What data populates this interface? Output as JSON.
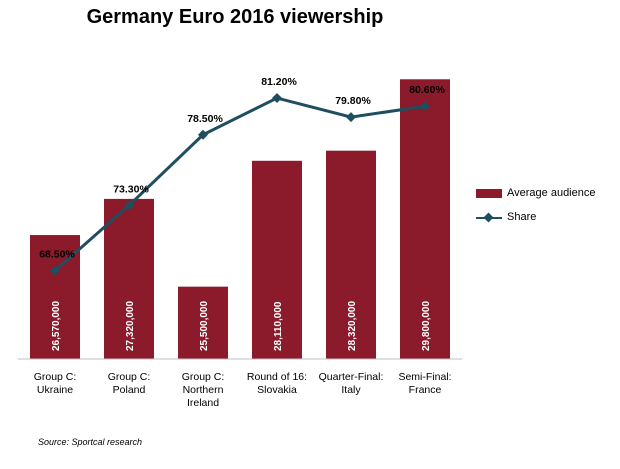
{
  "chart_data": {
    "type": "bar",
    "title": "Germany Euro 2016 viewership",
    "categories": [
      [
        "Group C:",
        "Ukraine"
      ],
      [
        "Group C:",
        "Poland"
      ],
      [
        "Group C:",
        "Northern",
        "Ireland"
      ],
      [
        "Round of 16:",
        "Slovakia"
      ],
      [
        "Quarter-Final:",
        "Italy"
      ],
      [
        "Semi-Final:",
        "France"
      ]
    ],
    "series": [
      {
        "name": "Average audience",
        "type": "bar",
        "color": "#8b1a2b",
        "values": [
          26570000,
          27320000,
          25500000,
          28110000,
          28320000,
          29800000
        ],
        "labels": [
          "26,570,000",
          "27,320,000",
          "25,500,000",
          "28,110,000",
          "28,320,000",
          "29,800,000"
        ]
      },
      {
        "name": "Share",
        "type": "line",
        "color": "#1f4e5f",
        "values": [
          68.5,
          73.3,
          78.5,
          81.2,
          79.8,
          80.6
        ],
        "labels": [
          "68.50%",
          "73.30%",
          "78.50%",
          "81.20%",
          "79.80%",
          "80.60%"
        ]
      }
    ],
    "bar_axis_range": [
      24000000,
      30200000
    ],
    "line_axis_range": [
      62,
      84
    ],
    "grid": false,
    "legend_position": "right",
    "source": "Source: Sportcal research"
  }
}
